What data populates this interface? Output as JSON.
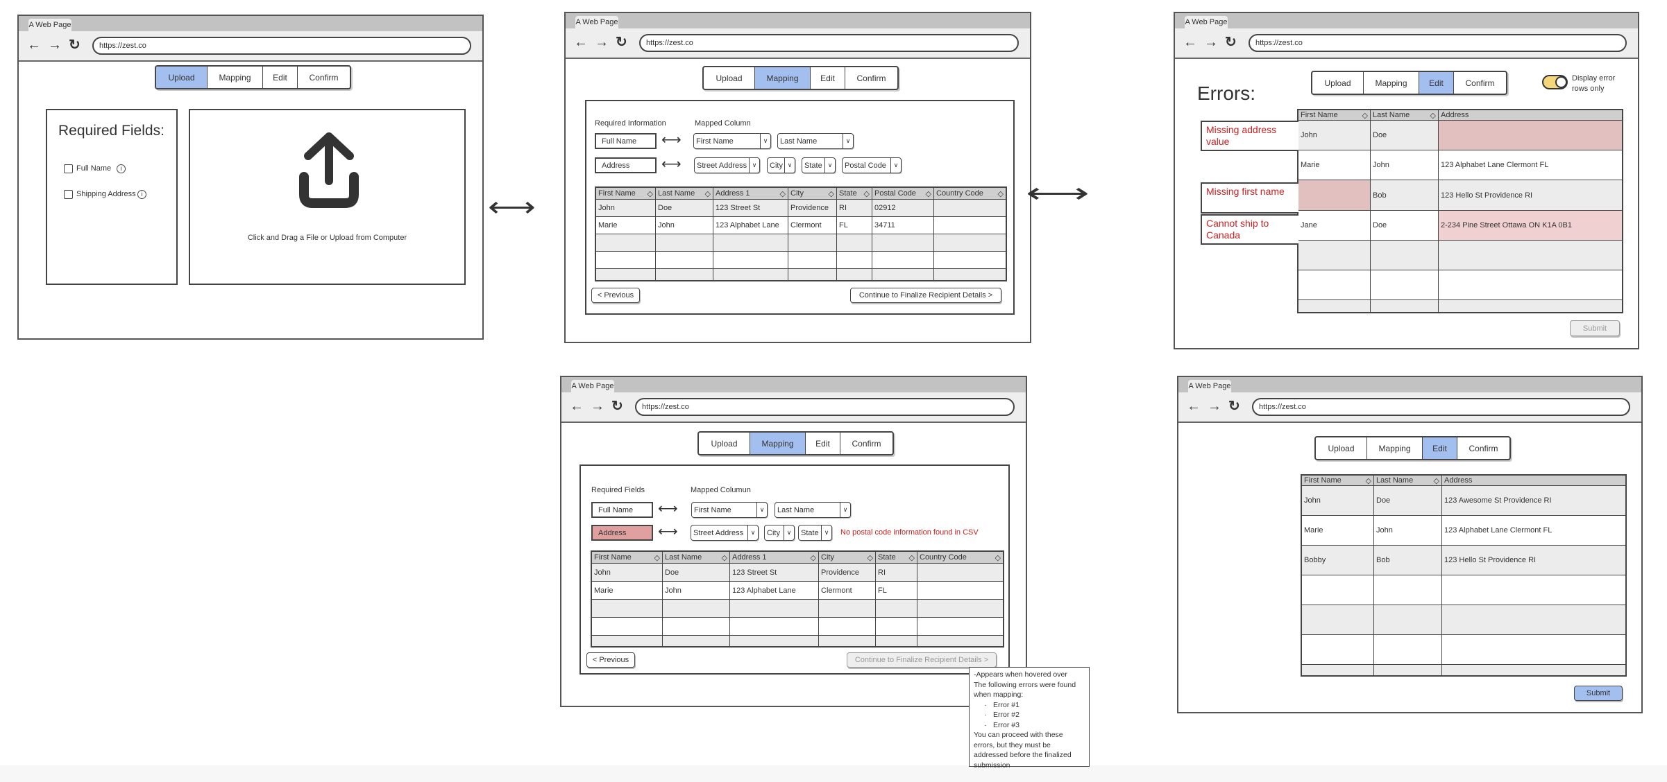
{
  "browser": {
    "tab_title": "A Web Page",
    "url": "https://zest.co",
    "icons": [
      "back-arrow-icon",
      "forward-arrow-icon",
      "reload-icon"
    ]
  },
  "steps": [
    "Upload",
    "Mapping",
    "Edit",
    "Confirm"
  ],
  "colors": {
    "active_step": "#a3bff0",
    "error_text": "#cc2020",
    "error_cell": "#e3c0c0",
    "warning_cell": "#f0d0d0",
    "toggle_on": "#f5d77a",
    "table_header": "#cfcfcf",
    "row_alt": "#ececec"
  },
  "screens": {
    "upload": {
      "active_step": "Upload",
      "required_title": "Required Fields:",
      "fields": [
        {
          "label": "Full Name",
          "checked": false
        },
        {
          "label": "Shipping Address",
          "checked": false
        }
      ],
      "dropzone_icon": "upload-icon",
      "dropzone_text": "Click and Drag a File or Upload from Computer"
    },
    "mapping": {
      "active_step": "Mapping",
      "required_label": "Required Information",
      "mapped_label": "Mapped Column",
      "mappings": [
        {
          "field": "Full Name",
          "selects": [
            "First Name",
            "Last Name"
          ]
        },
        {
          "field": "Address",
          "selects": [
            "Street Address",
            "City",
            "State",
            "Postal Code"
          ]
        }
      ],
      "table": {
        "columns": [
          "First Name",
          "Last Name",
          "Address 1",
          "City",
          "State",
          "Postal Code",
          "Country Code"
        ],
        "rows": [
          [
            "John",
            "Doe",
            "123 Street St",
            "Providence",
            "RI",
            "02912",
            ""
          ],
          [
            "Marie",
            "John",
            "123 Alphabet Lane",
            "Clermont",
            "FL",
            "34711",
            ""
          ],
          [
            "",
            "",
            "",
            "",
            "",
            "",
            ""
          ],
          [
            "",
            "",
            "",
            "",
            "",
            "",
            ""
          ],
          [
            "",
            "",
            "",
            "",
            "",
            "",
            ""
          ]
        ]
      },
      "previous": "< Previous",
      "continue": "Continue to Finalize Recipient Details >"
    },
    "mapping_error": {
      "active_step": "Mapping",
      "required_label": "Required Fields",
      "mapped_label": "Mapped Columun",
      "mappings": [
        {
          "field": "Full Name",
          "selects": [
            "First Name",
            "Last Name"
          ],
          "error": false
        },
        {
          "field": "Address",
          "selects": [
            "Street Address",
            "City",
            "State"
          ],
          "error": true
        }
      ],
      "error_message": "No postal code information found in CSV",
      "table": {
        "columns": [
          "First Name",
          "Last Name",
          "Address 1",
          "City",
          "State",
          "Country Code"
        ],
        "rows": [
          [
            "John",
            "Doe",
            "123 Street St",
            "Providence",
            "RI",
            ""
          ],
          [
            "Marie",
            "John",
            "123 Alphabet Lane",
            "Clermont",
            "FL",
            ""
          ],
          [
            "",
            "",
            "",
            "",
            "",
            ""
          ],
          [
            "",
            "",
            "",
            "",
            "",
            ""
          ],
          [
            "",
            "",
            "",
            "",
            "",
            ""
          ]
        ]
      },
      "previous": "< Previous",
      "continue": "Continue to Finalize Recipient Details >",
      "continue_disabled": true,
      "tooltip": {
        "note": "-Appears when hovered over",
        "intro": "The following errors were found when mapping:",
        "errors": [
          "Error #1",
          "Error #2",
          "Error #3"
        ],
        "outro": "You can proceed with these errors, but they must be addressed before the finalized submission"
      }
    },
    "edit_errors": {
      "active_step": "Edit",
      "title": "Errors:",
      "toggle_label": "Display error rows only",
      "toggle_on": true,
      "columns": [
        "First Name",
        "Last Name",
        "Address"
      ],
      "rows": [
        {
          "cells": [
            "John",
            "Doe",
            ""
          ],
          "error": "Missing address value",
          "error_cells": [
            2
          ],
          "severity": "error"
        },
        {
          "cells": [
            "Marie",
            "John",
            "123 Alphabet Lane Clermont FL"
          ],
          "error": "",
          "error_cells": []
        },
        {
          "cells": [
            "",
            "Bob",
            "123 Hello St Providence RI"
          ],
          "error": "Missing first name",
          "error_cells": [
            0
          ],
          "severity": "error"
        },
        {
          "cells": [
            "Jane",
            "Doe",
            "2-234 Pine Street Ottawa ON K1A 0B1"
          ],
          "error": "Cannot ship to Canada",
          "error_cells": [
            2
          ],
          "severity": "warning"
        },
        {
          "cells": [
            "",
            "",
            ""
          ],
          "error": "",
          "error_cells": []
        },
        {
          "cells": [
            "",
            "",
            ""
          ],
          "error": "",
          "error_cells": []
        },
        {
          "cells": [
            "",
            "",
            ""
          ],
          "error": "",
          "error_cells": []
        }
      ],
      "submit": "Submit",
      "submit_disabled": true
    },
    "edit_fixed": {
      "active_step": "Edit",
      "columns": [
        "First Name",
        "Last Name",
        "Address"
      ],
      "rows": [
        {
          "cells": [
            "John",
            "Doe",
            "123 Awesome St Providence RI"
          ]
        },
        {
          "cells": [
            "Marie",
            "John",
            "123 Alphabet Lane Clermont FL"
          ]
        },
        {
          "cells": [
            "Bobby",
            "Bob",
            "123 Hello St Providence RI"
          ]
        },
        {
          "cells": [
            "",
            "",
            ""
          ]
        },
        {
          "cells": [
            "",
            "",
            ""
          ]
        },
        {
          "cells": [
            "",
            "",
            ""
          ]
        },
        {
          "cells": [
            "",
            "",
            ""
          ]
        }
      ],
      "submit": "Submit",
      "submit_disabled": false
    }
  },
  "flow_connectors": [
    "double-arrow-icon",
    "double-arrow-icon"
  ]
}
